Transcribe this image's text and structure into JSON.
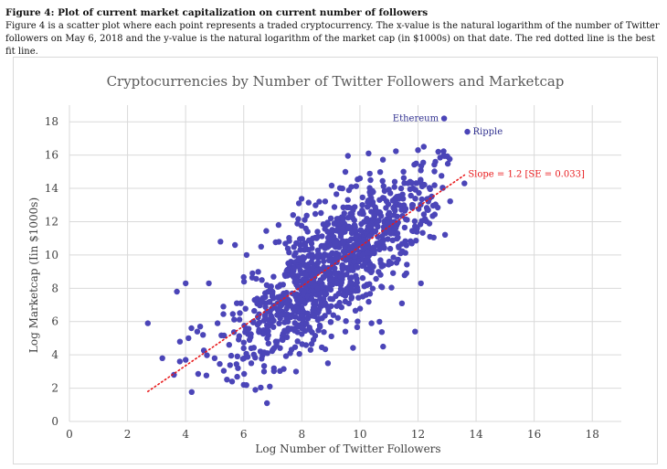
{
  "caption": {
    "title": "Figure 4: Plot of current market capitalization on current number of followers",
    "text": "Figure 4 is a scatter plot where each point represents a traded cryptocurrency. The x-value is the natural logarithm of the number of Twitter followers on May 6, 2018 and the y-value is the natural logarithm of the market cap (in $1000s) on that date. The red dotted line is the best fit line."
  },
  "colors": {
    "points": "#4b45b8",
    "fit_line": "#e8191b",
    "grid": "#d9d9d9",
    "annotation": "#2f2f8f"
  },
  "chart_data": {
    "type": "scatter",
    "title": "Cryptocurrencies by Number of Twitter Followers and Marketcap",
    "xlabel": "Log Number of Twitter Followers",
    "ylabel": "Log Marketcap (Iin $1000s)",
    "xlim": [
      0,
      19
    ],
    "ylim": [
      0,
      19
    ],
    "xticks": [
      0,
      2,
      4,
      6,
      8,
      10,
      12,
      14,
      16,
      18
    ],
    "yticks": [
      0,
      2,
      4,
      6,
      8,
      10,
      12,
      14,
      16,
      18
    ],
    "grid": true,
    "approx_point_count": 1100,
    "labeled_points": [
      {
        "name": "Ethereum",
        "x": 12.9,
        "y": 18.2
      },
      {
        "name": "Ripple",
        "x": 13.7,
        "y": 17.4
      }
    ],
    "fit_line": {
      "label": "Slope = 1.2 [SE = 0.033]",
      "slope": 1.2,
      "x_start": 2.7,
      "y_start": 1.8,
      "x_end": 13.6,
      "y_end": 14.8
    },
    "sample_points": [
      [
        2.7,
        5.9
      ],
      [
        3.2,
        3.8
      ],
      [
        3.6,
        2.8
      ],
      [
        3.7,
        7.8
      ],
      [
        3.8,
        3.6
      ],
      [
        4.0,
        8.3
      ],
      [
        4.0,
        3.7
      ],
      [
        4.1,
        5.0
      ],
      [
        4.2,
        5.6
      ],
      [
        4.4,
        5.4
      ],
      [
        4.5,
        5.7
      ],
      [
        4.6,
        5.2
      ],
      [
        4.8,
        8.3
      ],
      [
        5.0,
        3.8
      ],
      [
        5.1,
        5.9
      ],
      [
        5.2,
        10.8
      ],
      [
        5.3,
        6.9
      ],
      [
        5.5,
        4.6
      ],
      [
        5.6,
        2.4
      ],
      [
        5.7,
        10.6
      ],
      [
        5.8,
        3.2
      ],
      [
        5.9,
        7.1
      ],
      [
        6.0,
        2.2
      ],
      [
        6.1,
        10.0
      ],
      [
        6.2,
        4.9
      ],
      [
        6.3,
        8.9
      ],
      [
        6.4,
        1.9
      ],
      [
        6.6,
        10.5
      ],
      [
        6.7,
        3.0
      ],
      [
        6.8,
        1.1
      ],
      [
        6.9,
        2.1
      ],
      [
        7.0,
        4.3
      ],
      [
        7.2,
        11.8
      ],
      [
        7.3,
        6.4
      ],
      [
        7.5,
        9.1
      ],
      [
        7.6,
        4.1
      ],
      [
        7.7,
        12.4
      ],
      [
        7.8,
        3.0
      ],
      [
        7.9,
        13.1
      ],
      [
        8.0,
        5.6
      ],
      [
        8.1,
        7.1
      ],
      [
        8.2,
        11.4
      ],
      [
        8.3,
        4.3
      ],
      [
        8.5,
        9.9
      ],
      [
        8.6,
        13.2
      ],
      [
        8.7,
        6.2
      ],
      [
        8.8,
        10.4
      ],
      [
        8.9,
        3.5
      ],
      [
        9.0,
        12.2
      ],
      [
        9.2,
        8.3
      ],
      [
        9.4,
        14.0
      ],
      [
        9.5,
        5.4
      ],
      [
        9.6,
        11.6
      ],
      [
        9.8,
        9.6
      ],
      [
        10.0,
        14.6
      ],
      [
        10.1,
        7.5
      ],
      [
        10.3,
        16.1
      ],
      [
        10.4,
        5.9
      ],
      [
        10.6,
        12.6
      ],
      [
        10.8,
        4.5
      ],
      [
        11.0,
        11.4
      ],
      [
        11.2,
        14.4
      ],
      [
        11.4,
        10.1
      ],
      [
        11.5,
        15.0
      ],
      [
        11.6,
        8.9
      ],
      [
        11.8,
        13.0
      ],
      [
        11.9,
        5.4
      ],
      [
        12.0,
        16.3
      ],
      [
        12.1,
        8.3
      ],
      [
        12.2,
        16.5
      ],
      [
        12.4,
        13.4
      ],
      [
        12.6,
        15.6
      ],
      [
        12.7,
        16.2
      ],
      [
        13.6,
        14.3
      ]
    ]
  }
}
